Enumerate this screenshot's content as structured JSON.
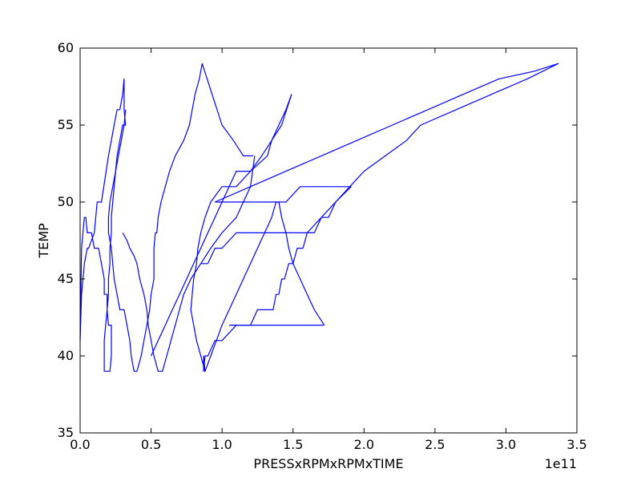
{
  "chart_data": {
    "type": "line",
    "title": "",
    "xlabel": "PRESSxRPMxRPMxTIME",
    "ylabel": "TEMP",
    "x_offset_label": "1e11",
    "x_scale": 100000000000.0,
    "xlim": [
      0,
      3.5
    ],
    "ylim": [
      35,
      60
    ],
    "xticks": [
      0.0,
      0.5,
      1.0,
      1.5,
      2.0,
      2.5,
      3.0,
      3.5
    ],
    "xtick_labels": [
      "0.0",
      "0.5",
      "1.0",
      "1.5",
      "2.0",
      "2.5",
      "3.0",
      "3.5"
    ],
    "yticks": [
      35,
      40,
      45,
      50,
      55,
      60
    ],
    "ytick_labels": [
      "35",
      "40",
      "45",
      "50",
      "55",
      "60"
    ],
    "grid": false,
    "line_color": "#0000ff",
    "series": [
      {
        "x": [
          0.0,
          0.01,
          0.03,
          0.05,
          0.06,
          0.1,
          0.11,
          0.12,
          0.13,
          0.15,
          0.2,
          0.24,
          0.26,
          0.28,
          0.3,
          0.31,
          0.31,
          0.31,
          0.32,
          0.3,
          0.28,
          0.26,
          0.25,
          0.24,
          0.23,
          0.22,
          0.22,
          0.21,
          0.21,
          0.2,
          0.2,
          0.19,
          0.18,
          0.17,
          0.17,
          0.17,
          0.19,
          0.21,
          0.22,
          0.22,
          0.22,
          0.2,
          0.19,
          0.19,
          0.17,
          0.17,
          0.15,
          0.13,
          0.1,
          0.08,
          0.05,
          0.04,
          0.03,
          0.02,
          0.01,
          0.0
        ],
        "y": [
          41,
          44,
          46,
          47,
          47,
          48,
          49,
          50,
          50,
          50,
          53,
          55,
          56,
          56,
          57,
          58,
          56,
          56,
          55,
          55,
          54,
          53,
          52,
          51,
          50,
          49,
          48,
          47,
          46,
          45,
          44,
          43,
          42,
          41,
          40,
          39,
          39,
          39,
          40,
          41,
          42,
          42,
          43,
          44,
          44,
          45,
          46,
          47,
          47,
          48,
          48,
          49,
          49,
          48,
          47,
          41
        ]
      },
      {
        "x": [
          0.32,
          0.31,
          0.29,
          0.27,
          0.25,
          0.23,
          0.21,
          0.2,
          0.2,
          0.22,
          0.23,
          0.24,
          0.26,
          0.28,
          0.31,
          0.33,
          0.35,
          0.36,
          0.38,
          0.4,
          0.43,
          0.45,
          0.47,
          0.49,
          0.5,
          0.52,
          0.52,
          0.52,
          0.53,
          0.54,
          0.55,
          0.57,
          0.6,
          0.63,
          0.67,
          0.73,
          0.77,
          0.79,
          0.81,
          0.84,
          0.86
        ],
        "y": [
          56,
          55,
          54,
          53,
          52,
          51,
          50,
          49,
          48,
          47,
          46,
          45,
          44,
          43,
          43,
          42,
          41,
          40,
          39,
          39,
          40,
          41,
          42,
          43,
          44,
          45,
          46,
          47,
          48,
          48,
          49,
          50,
          51,
          52,
          53,
          54,
          55,
          56,
          57,
          58,
          59
        ]
      },
      {
        "x": [
          0.3,
          0.33,
          0.35,
          0.38,
          0.4,
          0.42,
          0.45,
          0.47,
          0.48,
          0.5,
          0.52,
          0.55,
          0.58,
          0.61,
          0.64,
          0.67,
          0.7,
          0.73,
          0.78,
          0.85,
          0.92,
          1.0,
          1.1,
          1.2,
          1.23
        ],
        "y": [
          48,
          47.5,
          47,
          46.5,
          46,
          45,
          44,
          43,
          42,
          41,
          40,
          39,
          39,
          40,
          41,
          42,
          43,
          44,
          45,
          46,
          47,
          48,
          49,
          51,
          53
        ]
      },
      {
        "x": [
          0.86,
          0.93,
          1.0,
          1.08,
          1.15,
          1.2,
          1.22
        ],
        "y": [
          59,
          57,
          55,
          54,
          53,
          53,
          53
        ]
      },
      {
        "x": [
          0.5,
          0.55,
          0.6,
          0.65,
          0.7,
          0.75,
          0.8,
          0.85,
          0.9,
          0.95,
          1.0,
          1.05,
          1.1,
          1.2,
          1.28,
          1.35,
          1.42,
          1.49
        ],
        "y": [
          40,
          41,
          42,
          43,
          44,
          45,
          46,
          47,
          48,
          49,
          50,
          51,
          52,
          52,
          53,
          54,
          55,
          57
        ]
      },
      {
        "x": [
          1.49,
          1.45,
          1.4,
          1.35,
          1.32,
          1.2,
          1.1,
          1.0,
          0.92,
          0.88,
          0.85,
          0.83,
          0.82,
          0.8,
          0.79,
          0.78,
          0.8,
          0.82,
          0.85,
          0.88,
          0.92,
          0.96,
          1.0,
          1.05,
          1.1,
          1.15,
          1.2,
          1.25,
          1.3,
          1.35,
          1.38,
          1.4,
          1.42,
          1.45,
          1.47,
          1.5,
          1.55,
          1.6,
          1.65,
          1.72
        ],
        "y": [
          57,
          56,
          55,
          54,
          53,
          52,
          51,
          51,
          50,
          49,
          48,
          47,
          46,
          45,
          44,
          43,
          42,
          41,
          40,
          39,
          40,
          41,
          42,
          43,
          44,
          45,
          46,
          47,
          48,
          49,
          50,
          50,
          49,
          48,
          47,
          46,
          45,
          44,
          43,
          42
        ]
      },
      {
        "x": [
          1.72,
          1.6,
          1.5,
          1.4,
          1.3,
          1.2,
          1.1,
          1.0,
          0.95,
          0.9,
          0.88,
          0.87,
          0.87,
          0.88
        ],
        "y": [
          42,
          42,
          42,
          42,
          42,
          42,
          42,
          41,
          41,
          40,
          40,
          39,
          40,
          39
        ]
      },
      {
        "x": [
          0.95,
          1.05,
          1.15,
          1.25,
          1.35,
          1.45,
          1.55,
          1.65,
          1.75,
          1.85,
          1.91
        ],
        "y": [
          50,
          50,
          50,
          50,
          50,
          50,
          51,
          51,
          51,
          51,
          51
        ]
      },
      {
        "x": [
          1.91,
          1.8,
          1.75,
          1.7,
          1.65,
          1.62,
          1.6,
          1.57,
          1.53,
          1.5,
          1.47,
          1.44,
          1.42,
          1.4,
          1.38,
          1.36,
          1.34,
          1.3,
          1.25,
          1.2,
          1.15,
          1.1,
          1.05
        ],
        "y": [
          51,
          50,
          49,
          49,
          48,
          48,
          48,
          47,
          47,
          46,
          46,
          45,
          45,
          44,
          44,
          43,
          43,
          43,
          43,
          42,
          42,
          42,
          42
        ]
      },
      {
        "x": [
          0.95,
          1.2,
          1.45,
          1.7,
          1.95,
          2.2,
          2.45,
          2.7,
          2.95,
          3.2,
          3.37
        ],
        "y": [
          50,
          51,
          52,
          53,
          54,
          55,
          56,
          57,
          58,
          58.5,
          59
        ]
      },
      {
        "x": [
          3.37,
          3.15,
          2.9,
          2.65,
          2.4,
          2.3,
          2.15,
          2.0,
          1.9,
          1.8,
          1.7,
          1.6,
          1.5,
          1.4,
          1.3,
          1.2,
          1.1,
          1.0,
          0.95,
          0.9,
          0.85
        ],
        "y": [
          59,
          58,
          57,
          56,
          55,
          54,
          53,
          52,
          51,
          50,
          49,
          48,
          48,
          48,
          48,
          48,
          48,
          47,
          47,
          46,
          46
        ]
      }
    ]
  }
}
